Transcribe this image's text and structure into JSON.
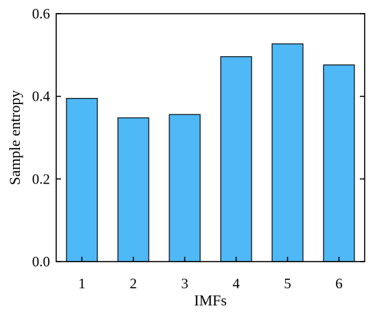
{
  "chart_data": {
    "type": "bar",
    "categories": [
      "1",
      "2",
      "3",
      "4",
      "5",
      "6"
    ],
    "values": [
      0.395,
      0.348,
      0.356,
      0.496,
      0.527,
      0.476
    ],
    "xlabel": "IMFs",
    "ylabel": "Sample entropy",
    "ylim": [
      0.0,
      0.6
    ],
    "yticks": [
      "0.0",
      "0.2",
      "0.4",
      "0.6"
    ],
    "grid": false,
    "bar_color": "#4fb8f7",
    "bar_edge_color": "#000000"
  }
}
